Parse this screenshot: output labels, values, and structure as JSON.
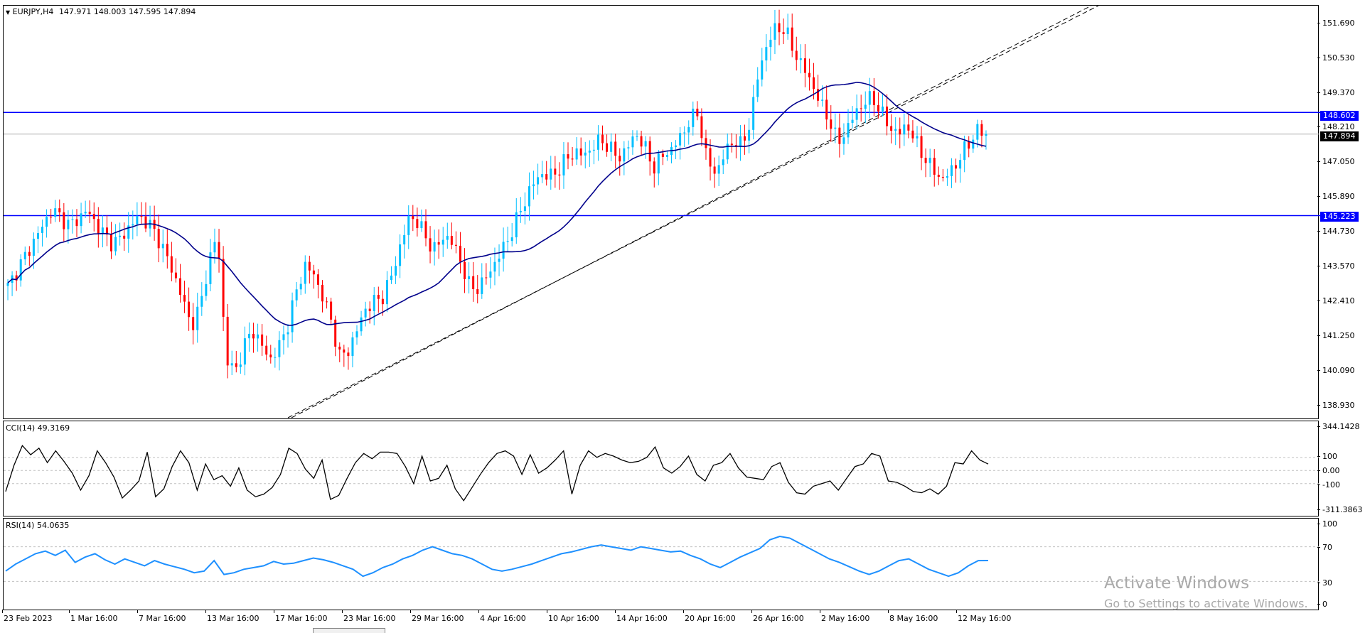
{
  "chart_header": {
    "menu_icon": "triangle-down-icon",
    "symbol": "EURJPY,H4",
    "ohlc": "147.971 148.003 147.595 147.894"
  },
  "price_axis": [
    "151.690",
    "150.530",
    "149.370",
    "148.210",
    "147.050",
    "145.890",
    "144.730",
    "143.570",
    "142.410",
    "141.250",
    "140.090",
    "138.930"
  ],
  "levels": {
    "upper": "148.602",
    "lower": "145.223",
    "current": "147.894",
    "line_color": "#0000ff",
    "current_bg": "#000000"
  },
  "cci": {
    "title": "CCI(14) 49.3169",
    "axis": [
      "344.1428",
      "100",
      "0.00",
      "-100",
      "-311.3863"
    ],
    "line_color": "#000000"
  },
  "rsi": {
    "title": "RSI(14) 54.0635",
    "axis": [
      "100",
      "70",
      "30",
      "0"
    ],
    "line_color": "#1e90ff"
  },
  "time_axis": [
    "23 Feb 2023",
    "1 Mar 16:00",
    "7 Mar 16:00",
    "13 Mar 16:00",
    "17 Mar 16:00",
    "23 Mar 16:00",
    "29 Mar 16:00",
    "4 Apr 16:00",
    "10 Apr 16:00",
    "14 Apr 16:00",
    "20 Apr 16:00",
    "26 Apr 16:00",
    "2 May 16:00",
    "8 May 16:00",
    "12 May 16:00"
  ],
  "colors": {
    "bull": "#00bfff",
    "bear": "#ff0000",
    "ma": "#00008b",
    "trendline": "#000000"
  },
  "watermark": {
    "line1": "Activate Windows",
    "line2": "Go to Settings to activate Windows."
  },
  "chart_data": {
    "type": "candlestick",
    "symbol": "EURJPY",
    "timeframe": "H4",
    "ylim": [
      138.6,
      152.1
    ],
    "moving_average_color": "#00008b",
    "horizontal_levels": [
      148.602,
      145.223
    ],
    "price_path": [
      142.9,
      143.4,
      143.9,
      144.4,
      144.9,
      145.4,
      145.2,
      144.9,
      145.1,
      145.4,
      145.0,
      144.6,
      144.3,
      144.5,
      144.9,
      145.2,
      145.0,
      144.6,
      144.0,
      143.3,
      142.5,
      141.6,
      142.2,
      143.7,
      144.6,
      140.5,
      140.1,
      140.9,
      141.5,
      141.0,
      140.5,
      140.9,
      141.6,
      142.7,
      143.6,
      143.3,
      142.6,
      141.8,
      140.6,
      140.8,
      141.5,
      142.2,
      142.4,
      142.6,
      143.3,
      144.3,
      145.2,
      145.0,
      144.4,
      144.1,
      144.6,
      144.3,
      143.6,
      142.8,
      142.9,
      143.3,
      143.8,
      144.3,
      144.9,
      145.6,
      146.2,
      146.6,
      146.5,
      146.7,
      147.1,
      147.3,
      147.2,
      147.5,
      147.7,
      147.4,
      147.1,
      147.5,
      147.9,
      147.4,
      146.8,
      147.2,
      147.4,
      147.8,
      148.3,
      148.6,
      147.1,
      146.6,
      147.2,
      147.7,
      147.5,
      148.3,
      150.0,
      150.9,
      151.4,
      151.3,
      150.6,
      150.1,
      149.6,
      148.9,
      148.4,
      147.6,
      148.0,
      148.6,
      148.9,
      149.1,
      148.6,
      148.1,
      147.9,
      148.2,
      147.6,
      147.1,
      146.7,
      146.4,
      146.7,
      147.1,
      147.6,
      148.0,
      147.894
    ],
    "cci_path": [
      -160,
      40,
      190,
      120,
      170,
      60,
      150,
      70,
      -20,
      -150,
      -40,
      150,
      60,
      -50,
      -210,
      -150,
      -80,
      140,
      -200,
      -140,
      30,
      150,
      60,
      -150,
      50,
      -70,
      -40,
      -120,
      20,
      -150,
      -200,
      -180,
      -130,
      -30,
      170,
      130,
      10,
      -60,
      80,
      -220,
      -190,
      -60,
      60,
      130,
      90,
      140,
      140,
      130,
      30,
      -100,
      110,
      -80,
      -60,
      40,
      -140,
      -230,
      -130,
      -30,
      60,
      130,
      150,
      110,
      -30,
      120,
      -20,
      20,
      80,
      150,
      -180,
      40,
      150,
      100,
      130,
      110,
      80,
      60,
      70,
      100,
      180,
      20,
      -20,
      30,
      110,
      -30,
      -80,
      40,
      60,
      130,
      20,
      -50,
      -60,
      -70,
      30,
      60,
      -90,
      -170,
      -180,
      -120,
      -100,
      -80,
      -150,
      -60,
      30,
      50,
      130,
      110,
      -80,
      -90,
      -120,
      -160,
      -170,
      -140,
      -180,
      -120,
      60,
      50,
      150,
      80,
      49.3169
    ],
    "rsi_path": [
      42,
      50,
      56,
      62,
      65,
      60,
      66,
      52,
      58,
      62,
      55,
      50,
      56,
      52,
      48,
      54,
      50,
      47,
      44,
      40,
      42,
      54,
      38,
      40,
      44,
      46,
      48,
      53,
      50,
      51,
      54,
      57,
      55,
      52,
      48,
      44,
      36,
      40,
      46,
      50,
      56,
      60,
      66,
      70,
      66,
      62,
      60,
      56,
      50,
      44,
      42,
      44,
      47,
      50,
      54,
      58,
      62,
      64,
      67,
      70,
      72,
      70,
      68,
      66,
      70,
      68,
      66,
      64,
      65,
      60,
      56,
      50,
      46,
      52,
      58,
      63,
      68,
      78,
      82,
      80,
      74,
      68,
      62,
      56,
      52,
      47,
      42,
      38,
      42,
      48,
      54,
      56,
      50,
      44,
      40,
      36,
      40,
      48,
      54,
      54.0635
    ]
  }
}
